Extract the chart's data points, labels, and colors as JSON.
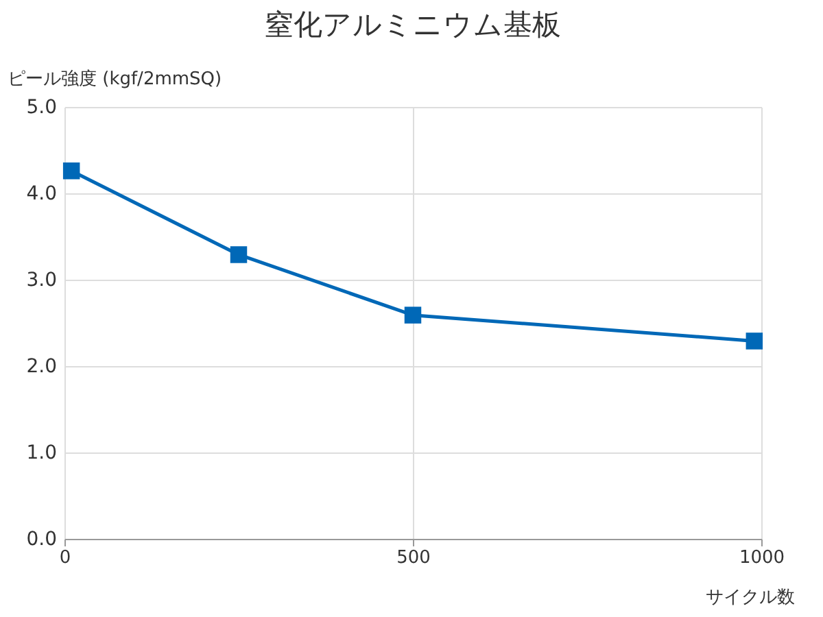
{
  "chart_data": {
    "type": "line",
    "title": "窒化アルミニウム基板",
    "xlabel": "サイクル数",
    "ylabel": "ピール強度 (kgf/2mmSQ)",
    "x": [
      10,
      250,
      500,
      990
    ],
    "series": [
      {
        "color": "#0068b7",
        "values": [
          4.26,
          3.29,
          2.59,
          2.29
        ]
      }
    ],
    "xlim": [
      0,
      1000
    ],
    "xticks": [
      0,
      500,
      1000
    ],
    "ylim": [
      0,
      5
    ],
    "yticks": [
      {
        "value": 0,
        "label": "0.0"
      },
      {
        "value": 1,
        "label": "1.0"
      },
      {
        "value": 2,
        "label": "2.0"
      },
      {
        "value": 3,
        "label": "3.0"
      },
      {
        "value": 4,
        "label": "4.0"
      },
      {
        "value": 5,
        "label": "5.0"
      }
    ],
    "grid": true,
    "marker": "square",
    "line_style": "solid"
  }
}
